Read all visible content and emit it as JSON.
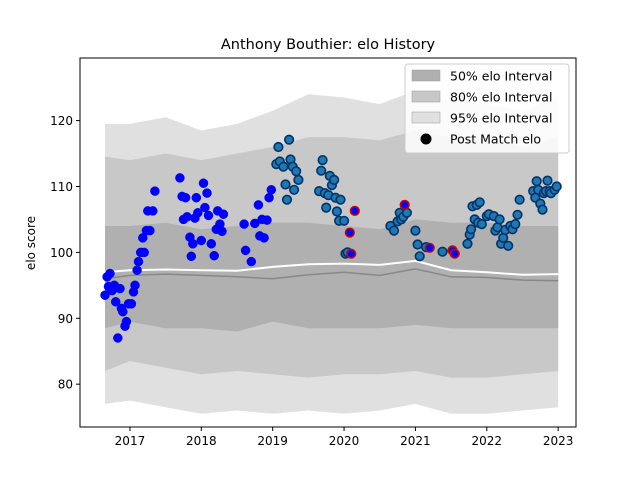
{
  "chart_data": {
    "type": "area",
    "title": "Anthony Bouthier: elo History",
    "xlabel": "",
    "ylabel": "elo score",
    "xlim": [
      2016.3,
      2023.25
    ],
    "ylim": [
      73.5,
      129.5
    ],
    "x_ticks": [
      2017,
      2018,
      2019,
      2020,
      2021,
      2022,
      2023
    ],
    "x_tick_labels": [
      "2017",
      "2018",
      "2019",
      "2020",
      "2021",
      "2022",
      "2023"
    ],
    "y_ticks": [
      80,
      90,
      100,
      110,
      120
    ],
    "y_tick_labels": [
      "80",
      "90",
      "100",
      "110",
      "120"
    ],
    "grid": false,
    "legend_position": "top-right",
    "legend": [
      {
        "label": "50% elo Interval",
        "kind": "band",
        "color": "#b0b0b0"
      },
      {
        "label": "80% elo Interval",
        "kind": "band",
        "color": "#c8c8c8"
      },
      {
        "label": "95% elo Interval",
        "kind": "band",
        "color": "#e0e0e0"
      },
      {
        "label": "Post Match elo",
        "kind": "marker",
        "color": "#000000"
      }
    ],
    "colors": {
      "band50": "#b0b0b0",
      "band80": "#c8c8c8",
      "band95": "#e0e0e0",
      "median_line": "#888888",
      "mean_line": "#ffffff",
      "pre2019_points": "#0000ff",
      "post2019_points": "#1f77b4",
      "post2019_edge": "#003366",
      "highlight_edge": "#cc0000"
    },
    "band_x": [
      2016.65,
      2017.0,
      2017.5,
      2018.0,
      2018.5,
      2019.0,
      2019.5,
      2020.0,
      2020.5,
      2021.0,
      2021.5,
      2022.0,
      2022.5,
      2023.0
    ],
    "band95": {
      "upper": [
        119.5,
        119.5,
        120.5,
        118.5,
        119.5,
        121.5,
        124.0,
        123.5,
        122.5,
        124.5,
        123.0,
        122.5,
        121.5,
        123.5
      ],
      "lower": [
        77.0,
        77.5,
        76.5,
        75.5,
        76.0,
        75.5,
        76.0,
        75.5,
        76.0,
        77.0,
        75.5,
        75.5,
        76.0,
        76.5
      ]
    },
    "band80": {
      "upper": [
        114.5,
        114.0,
        115.0,
        114.0,
        115.0,
        116.0,
        117.5,
        117.5,
        117.0,
        118.5,
        117.5,
        117.5,
        116.0,
        117.5
      ],
      "lower": [
        82.0,
        83.5,
        82.5,
        81.5,
        82.0,
        81.5,
        81.0,
        81.5,
        81.5,
        82.0,
        81.0,
        81.0,
        81.5,
        82.0
      ]
    },
    "band50": {
      "upper": [
        104.0,
        104.0,
        104.5,
        103.5,
        104.0,
        104.5,
        104.5,
        104.0,
        103.5,
        105.0,
        104.5,
        104.5,
        104.0,
        104.0
      ],
      "lower": [
        88.5,
        89.5,
        88.5,
        88.5,
        88.0,
        89.5,
        88.5,
        88.5,
        88.5,
        89.0,
        88.5,
        88.5,
        88.5,
        88.5
      ]
    },
    "median_line": [
      96.0,
      96.5,
      96.7,
      96.5,
      96.3,
      96.0,
      96.6,
      97.0,
      96.5,
      97.5,
      96.3,
      96.2,
      95.8,
      95.7
    ],
    "mean_line": [
      97.0,
      97.3,
      97.4,
      97.3,
      97.2,
      97.8,
      98.2,
      98.3,
      98.1,
      98.7,
      97.3,
      97.0,
      96.6,
      96.7
    ],
    "points_pre2019": [
      [
        2016.65,
        93.5
      ],
      [
        2016.68,
        96.3
      ],
      [
        2016.7,
        94.8
      ],
      [
        2016.72,
        96.8
      ],
      [
        2016.75,
        94.2
      ],
      [
        2016.78,
        95.0
      ],
      [
        2016.8,
        92.5
      ],
      [
        2016.83,
        87.0
      ],
      [
        2016.86,
        94.5
      ],
      [
        2016.88,
        91.5
      ],
      [
        2016.9,
        91.0
      ],
      [
        2016.93,
        88.8
      ],
      [
        2016.95,
        89.5
      ],
      [
        2016.98,
        92.2
      ],
      [
        2017.02,
        92.2
      ],
      [
        2017.05,
        94.0
      ],
      [
        2017.07,
        95.0
      ],
      [
        2017.1,
        97.3
      ],
      [
        2017.12,
        98.6
      ],
      [
        2017.15,
        100.0
      ],
      [
        2017.18,
        102.2
      ],
      [
        2017.2,
        100.0
      ],
      [
        2017.23,
        103.3
      ],
      [
        2017.25,
        106.3
      ],
      [
        2017.28,
        103.3
      ],
      [
        2017.32,
        106.3
      ],
      [
        2017.35,
        109.3
      ],
      [
        2017.7,
        111.3
      ],
      [
        2017.73,
        108.5
      ],
      [
        2017.75,
        105.0
      ],
      [
        2017.78,
        108.3
      ],
      [
        2017.8,
        105.4
      ],
      [
        2017.84,
        102.3
      ],
      [
        2017.86,
        99.4
      ],
      [
        2017.88,
        101.3
      ],
      [
        2017.91,
        105.2
      ],
      [
        2017.93,
        108.3
      ],
      [
        2017.95,
        106.0
      ],
      [
        2018.0,
        101.8
      ],
      [
        2018.03,
        110.5
      ],
      [
        2018.05,
        106.8
      ],
      [
        2018.08,
        109.0
      ],
      [
        2018.1,
        105.6
      ],
      [
        2018.14,
        101.3
      ],
      [
        2018.18,
        99.5
      ],
      [
        2018.21,
        103.5
      ],
      [
        2018.23,
        106.3
      ],
      [
        2018.26,
        104.3
      ],
      [
        2018.29,
        103.2
      ],
      [
        2018.31,
        105.8
      ],
      [
        2018.6,
        104.3
      ],
      [
        2018.62,
        100.3
      ],
      [
        2018.7,
        98.6
      ],
      [
        2018.75,
        104.4
      ],
      [
        2018.8,
        107.2
      ],
      [
        2018.82,
        102.5
      ],
      [
        2018.85,
        105.0
      ],
      [
        2018.88,
        102.2
      ],
      [
        2018.92,
        104.9
      ],
      [
        2018.95,
        108.3
      ],
      [
        2018.98,
        109.5
      ]
    ],
    "points_post2019": [
      [
        2019.05,
        113.4
      ],
      [
        2019.08,
        116.0
      ],
      [
        2019.1,
        113.8
      ],
      [
        2019.15,
        113.0
      ],
      [
        2019.18,
        110.3
      ],
      [
        2019.2,
        108.0
      ],
      [
        2019.23,
        117.1
      ],
      [
        2019.25,
        114.1
      ],
      [
        2019.28,
        113.0
      ],
      [
        2019.3,
        109.5
      ],
      [
        2019.33,
        112.3
      ],
      [
        2019.36,
        111.0
      ],
      [
        2019.65,
        109.3
      ],
      [
        2019.68,
        112.4
      ],
      [
        2019.7,
        114.0
      ],
      [
        2019.73,
        109.0
      ],
      [
        2019.75,
        106.8
      ],
      [
        2019.78,
        108.7
      ],
      [
        2019.8,
        111.6
      ],
      [
        2019.83,
        110.2
      ],
      [
        2019.86,
        111.0
      ],
      [
        2019.88,
        108.3
      ],
      [
        2019.9,
        106.2
      ],
      [
        2019.93,
        104.8
      ],
      [
        2019.95,
        108.0
      ],
      [
        2020.0,
        104.8
      ],
      [
        2020.02,
        99.8
      ],
      [
        2020.05,
        100.0
      ],
      [
        2020.65,
        104.0
      ],
      [
        2020.7,
        103.3
      ],
      [
        2020.75,
        104.7
      ],
      [
        2020.78,
        106.0
      ],
      [
        2020.8,
        105.0
      ],
      [
        2020.83,
        105.4
      ],
      [
        2020.88,
        106.0
      ],
      [
        2021.0,
        103.3
      ],
      [
        2021.03,
        101.2
      ],
      [
        2021.06,
        99.4
      ],
      [
        2021.15,
        100.8
      ],
      [
        2021.38,
        100.1
      ],
      [
        2021.73,
        101.3
      ],
      [
        2021.76,
        102.7
      ],
      [
        2021.78,
        103.5
      ],
      [
        2021.8,
        107.0
      ],
      [
        2021.83,
        105.0
      ],
      [
        2021.86,
        107.2
      ],
      [
        2021.88,
        104.5
      ],
      [
        2021.9,
        107.6
      ],
      [
        2021.93,
        104.3
      ],
      [
        2022.0,
        105.5
      ],
      [
        2022.03,
        105.8
      ],
      [
        2022.1,
        105.5
      ],
      [
        2022.12,
        103.3
      ],
      [
        2022.15,
        103.8
      ],
      [
        2022.18,
        105.0
      ],
      [
        2022.2,
        101.3
      ],
      [
        2022.23,
        102.2
      ],
      [
        2022.26,
        103.4
      ],
      [
        2022.3,
        101.0
      ],
      [
        2022.33,
        104.0
      ],
      [
        2022.36,
        103.5
      ],
      [
        2022.4,
        104.3
      ],
      [
        2022.43,
        105.7
      ],
      [
        2022.46,
        108.0
      ],
      [
        2022.65,
        109.3
      ],
      [
        2022.68,
        108.3
      ],
      [
        2022.7,
        110.8
      ],
      [
        2022.72,
        109.5
      ],
      [
        2022.75,
        107.4
      ],
      [
        2022.78,
        106.5
      ],
      [
        2022.8,
        109.0
      ],
      [
        2022.83,
        109.3
      ],
      [
        2022.85,
        110.9
      ],
      [
        2022.88,
        109.3
      ],
      [
        2022.9,
        109.0
      ],
      [
        2022.95,
        109.5
      ],
      [
        2022.98,
        110.0
      ]
    ],
    "points_highlighted": [
      [
        2020.08,
        103.0
      ],
      [
        2020.1,
        99.8
      ],
      [
        2020.15,
        106.3
      ],
      [
        2020.85,
        107.2
      ],
      [
        2021.2,
        100.7
      ],
      [
        2021.52,
        100.3
      ],
      [
        2021.55,
        99.8
      ]
    ]
  }
}
